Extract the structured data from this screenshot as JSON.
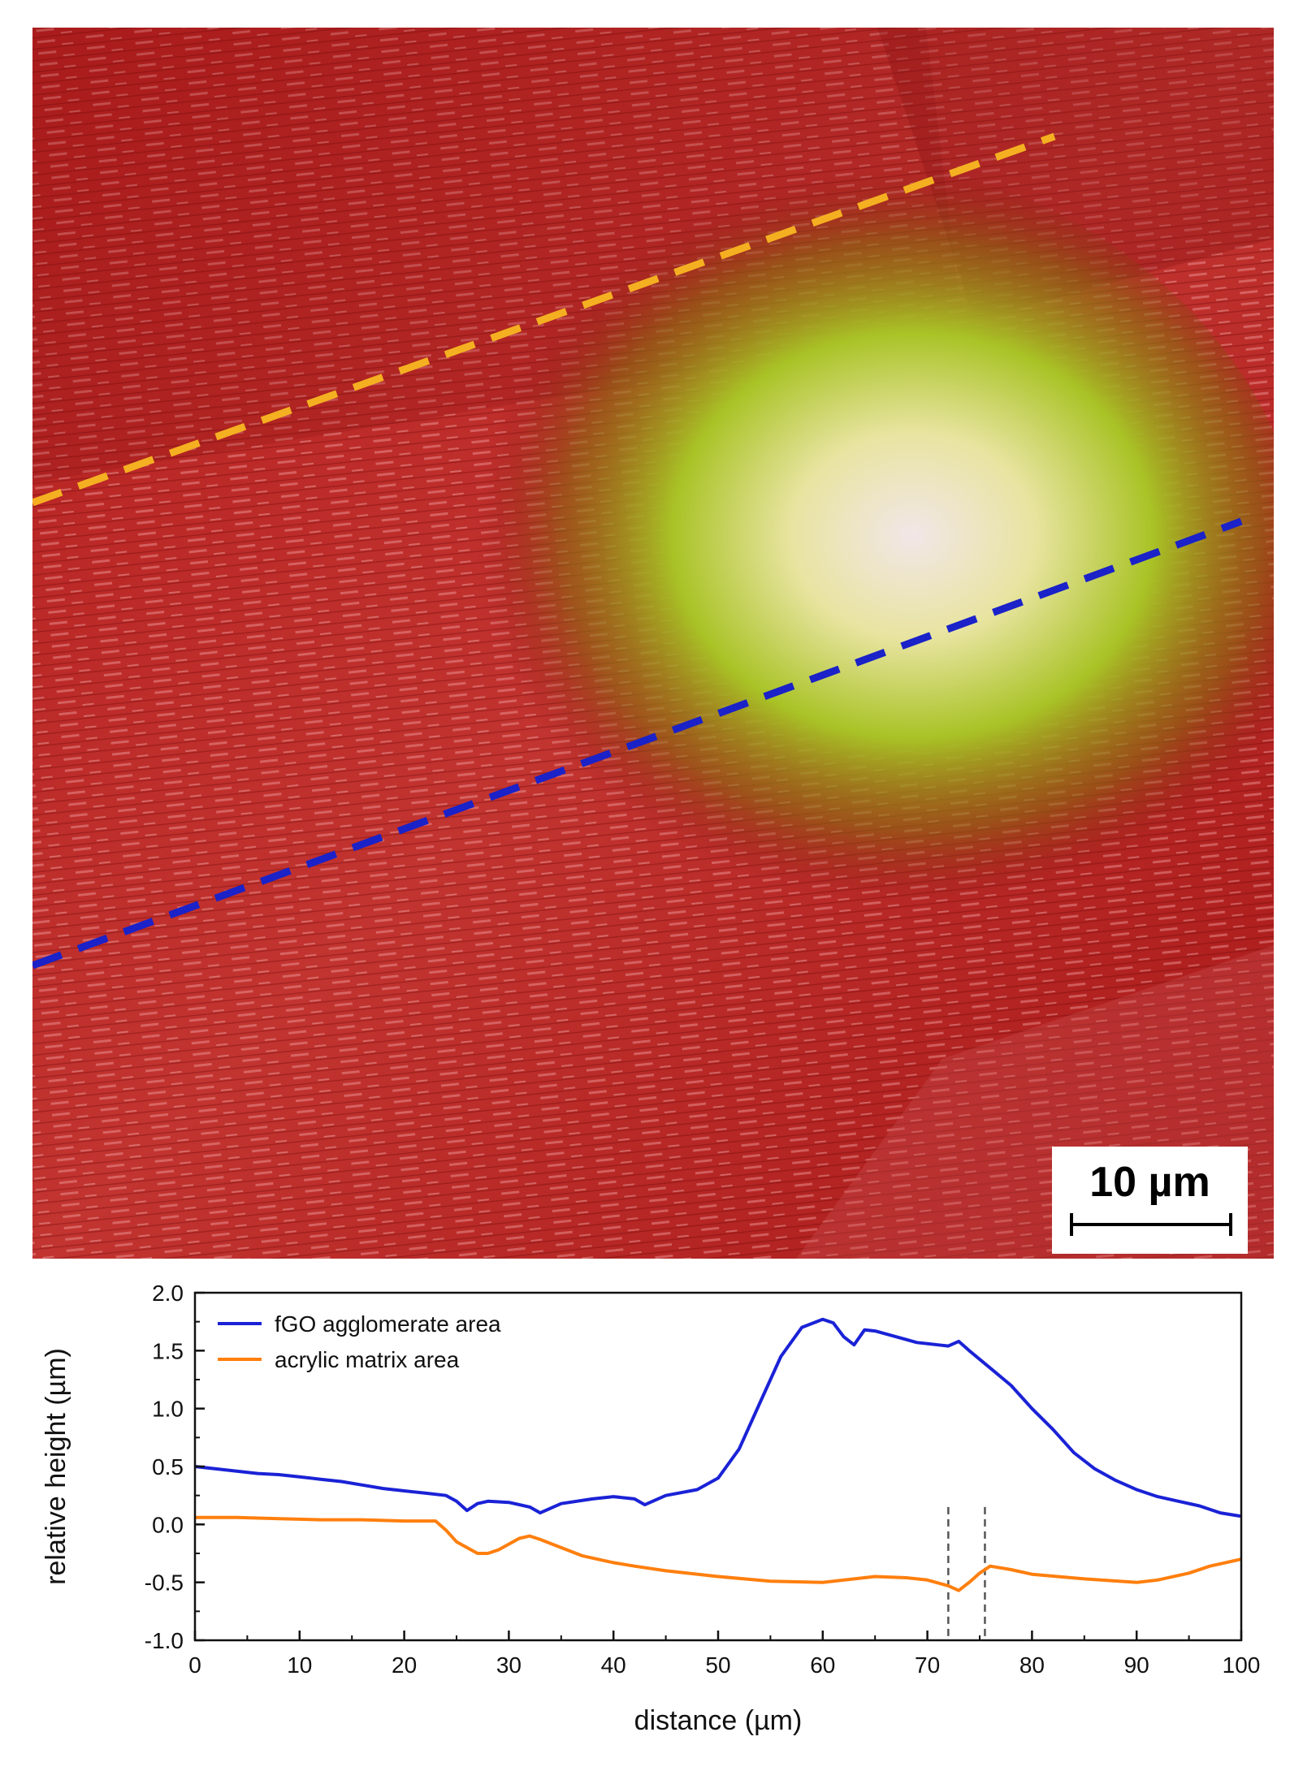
{
  "figure": {
    "scale_bar_label": "10 µm"
  },
  "chart_data": {
    "type": "line",
    "xlabel": "distance (µm)",
    "ylabel": "relative height (µm)",
    "xlim": [
      0,
      100
    ],
    "ylim": [
      -1.0,
      2.0
    ],
    "x_ticks": [
      0,
      10,
      20,
      30,
      40,
      50,
      60,
      70,
      80,
      90,
      100
    ],
    "x_tick_labels": [
      "0",
      "10",
      "20",
      "30",
      "40",
      "50",
      "60",
      "70",
      "80",
      "90",
      "100"
    ],
    "y_ticks": [
      -1.0,
      -0.5,
      0.0,
      0.5,
      1.0,
      1.5,
      2.0
    ],
    "y_tick_labels": [
      "-1.0",
      "-0.5",
      "0.0",
      "0.5",
      "1.0",
      "1.5",
      "2.0"
    ],
    "legend_position": "top-left",
    "grid": false,
    "series": [
      {
        "name": "fGO agglomerate area",
        "color": "#1a22d6",
        "x": [
          0,
          2,
          4,
          6,
          8,
          10,
          12,
          14,
          16,
          18,
          20,
          22,
          24,
          25,
          26,
          27,
          28,
          30,
          32,
          33,
          35,
          38,
          40,
          42,
          43,
          45,
          48,
          50,
          52,
          54,
          56,
          58,
          60,
          61,
          62,
          63,
          64,
          65,
          67,
          69,
          71,
          72,
          73,
          74,
          76,
          78,
          80,
          82,
          84,
          86,
          88,
          90,
          92,
          94,
          96,
          98,
          100
        ],
        "y": [
          0.5,
          0.48,
          0.46,
          0.44,
          0.43,
          0.41,
          0.39,
          0.37,
          0.34,
          0.31,
          0.29,
          0.27,
          0.25,
          0.2,
          0.12,
          0.18,
          0.2,
          0.19,
          0.15,
          0.1,
          0.18,
          0.22,
          0.24,
          0.22,
          0.17,
          0.25,
          0.3,
          0.4,
          0.65,
          1.05,
          1.45,
          1.7,
          1.77,
          1.74,
          1.62,
          1.55,
          1.68,
          1.67,
          1.62,
          1.57,
          1.55,
          1.54,
          1.58,
          1.5,
          1.35,
          1.2,
          1.0,
          0.82,
          0.62,
          0.48,
          0.38,
          0.3,
          0.24,
          0.2,
          0.16,
          0.1,
          0.07
        ]
      },
      {
        "name": "acrylic matrix area",
        "color": "#ff7f0e",
        "x": [
          0,
          4,
          8,
          12,
          16,
          20,
          23,
          24,
          25,
          26,
          27,
          28,
          29,
          30,
          31,
          32,
          33,
          35,
          37,
          40,
          42,
          45,
          50,
          55,
          60,
          65,
          68,
          70,
          72,
          73,
          74,
          75,
          76,
          78,
          80,
          85,
          90,
          92,
          95,
          97,
          100
        ],
        "y": [
          0.06,
          0.06,
          0.05,
          0.04,
          0.04,
          0.03,
          0.03,
          -0.05,
          -0.15,
          -0.2,
          -0.25,
          -0.25,
          -0.22,
          -0.17,
          -0.12,
          -0.1,
          -0.13,
          -0.2,
          -0.27,
          -0.33,
          -0.36,
          -0.4,
          -0.45,
          -0.49,
          -0.5,
          -0.45,
          -0.46,
          -0.48,
          -0.53,
          -0.57,
          -0.5,
          -0.42,
          -0.36,
          -0.39,
          -0.43,
          -0.47,
          -0.5,
          -0.48,
          -0.42,
          -0.36,
          -0.3
        ]
      }
    ],
    "reference_lines_x": [
      72,
      75.5
    ]
  }
}
